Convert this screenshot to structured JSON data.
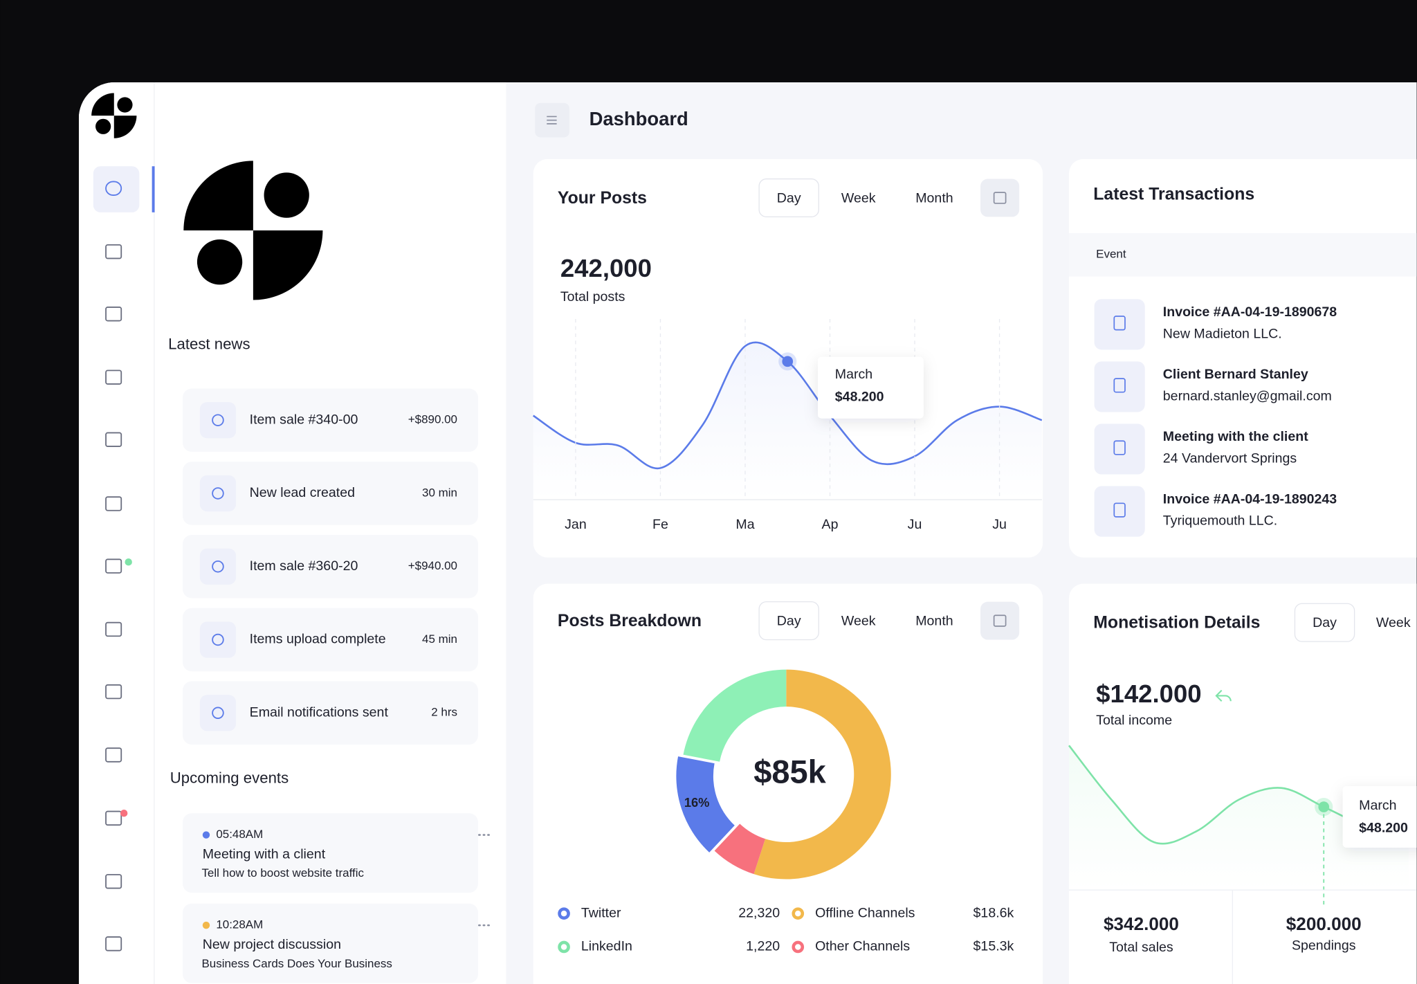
{
  "header": {
    "title": "Dashboard"
  },
  "news": {
    "title": "Latest news",
    "items": [
      {
        "label": "Item sale #340-00",
        "meta": "+$890.00"
      },
      {
        "label": "New lead created",
        "meta": "30 min"
      },
      {
        "label": "Item sale #360-20",
        "meta": "+$940.00"
      },
      {
        "label": "Items upload complete",
        "meta": "45 min"
      },
      {
        "label": "Email notifications sent",
        "meta": "2 hrs"
      }
    ]
  },
  "events": {
    "title": "Upcoming events",
    "items": [
      {
        "time": "05:48AM",
        "title": "Meeting with a client",
        "desc": "Tell how to boost website traffic",
        "color": "#5b7be9"
      },
      {
        "time": "10:28AM",
        "title": "New project discussion",
        "desc": "Business Cards Does Your Business",
        "color": "#f2b84b"
      }
    ]
  },
  "posts": {
    "title": "Your Posts",
    "tabs": [
      "Day",
      "Week",
      "Month"
    ],
    "total": "242,000",
    "total_label": "Total posts",
    "tooltip": {
      "label": "March",
      "value": "$48.200"
    }
  },
  "transactions": {
    "title": "Latest Transactions",
    "column": "Event",
    "items": [
      {
        "title": "Invoice #AA-04-19-1890678",
        "sub": "New Madieton LLC."
      },
      {
        "title": "Client Bernard Stanley",
        "sub": "bernard.stanley@gmail.com"
      },
      {
        "title": "Meeting with the client",
        "sub": "24 Vandervort Springs"
      },
      {
        "title": "Invoice #AA-04-19-1890243",
        "sub": "Tyriquemouth LLC."
      }
    ]
  },
  "breakdown": {
    "title": "Posts Breakdown",
    "tabs": [
      "Day",
      "Week",
      "Month"
    ],
    "center": "$85k",
    "legend": [
      {
        "name": "Twitter",
        "value": "22,320",
        "color": "#5b7be9"
      },
      {
        "name": "LinkedIn",
        "value": "1,220",
        "color": "#7ee3a8"
      },
      {
        "name": "Offline Channels",
        "value": "$18.6k",
        "color": "#f2b84b"
      },
      {
        "name": "Other Channels",
        "value": "$15.3k",
        "color": "#f7717d"
      }
    ]
  },
  "monetisation": {
    "title": "Monetisation Details",
    "tabs": [
      "Day",
      "Week"
    ],
    "total": "$142.000",
    "total_label": "Total income",
    "tooltip": {
      "label": "March",
      "value": "$48.200"
    },
    "stats": [
      {
        "value": "$342.000",
        "label": "Total sales"
      },
      {
        "value": "$200.000",
        "label": "Spendings"
      }
    ]
  },
  "chart_data": [
    {
      "type": "line",
      "categories": [
        null,
        "Jan",
        null,
        "Fe",
        null,
        "Ma",
        null,
        "Ap",
        null,
        "Ju",
        null,
        "Ju",
        null
      ],
      "values": [
        46.5,
        31.5,
        30,
        17.5,
        41.5,
        85,
        76.5,
        46.5,
        21.5,
        24,
        44,
        51.5,
        44
      ],
      "color": "#5b7be9",
      "ylim": [
        0,
        100
      ]
    },
    {
      "type": "pie",
      "values": [
        55,
        7,
        16,
        22
      ],
      "colors": [
        "#f2b84b",
        "#f7717d",
        "#5b7be9",
        "#8ef0b6"
      ],
      "value_labels": [
        null,
        null,
        "16%",
        null
      ]
    },
    {
      "type": "line",
      "values": [
        80,
        50,
        26.5,
        32.5,
        50,
        56.5,
        46,
        35,
        27.5
      ],
      "color": "#7ee3a8",
      "ylim": [
        0,
        100
      ]
    }
  ]
}
